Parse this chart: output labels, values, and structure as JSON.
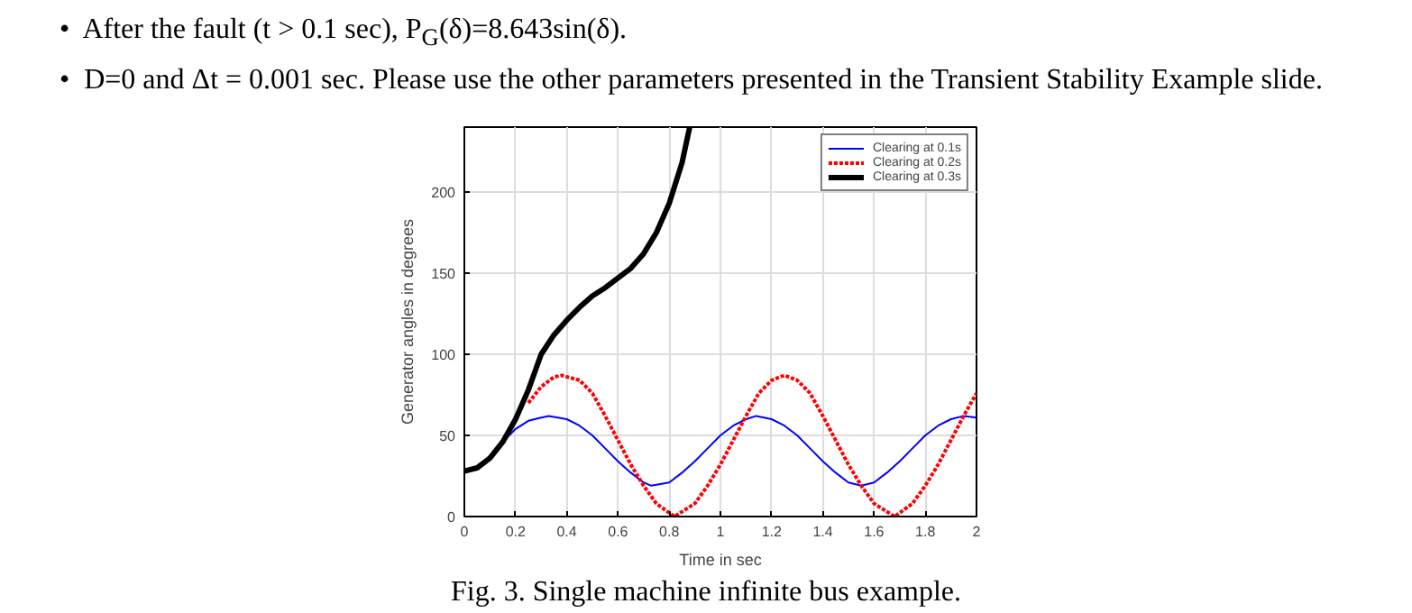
{
  "chart_data": {
    "type": "line",
    "xlabel": "Time in sec",
    "ylabel": "Generator angles in degrees",
    "annotations": [
      "•  After the fault (t > 0.1 sec), P$_{G}$(δ)=8.643sin(δ).",
      "•  D=0 and Δt = 0.001 sec. Please use the other parameters presented in the Transient Stability Example slide.",
      "Fig. 3. Single machine infinite bus example."
    ],
    "xlim": [
      0,
      2
    ],
    "ylim": [
      0,
      240
    ],
    "xticks": [
      0,
      0.2,
      0.4,
      0.6,
      0.8,
      1,
      1.2,
      1.4,
      1.6,
      1.8,
      2
    ],
    "yticks": [
      0,
      50,
      100,
      150,
      200
    ],
    "grid": true,
    "legend": "top right",
    "series": [
      {
        "name": "Clearing at 0.1s",
        "color": "#0000ff",
        "line_style": "solid",
        "x": [
          0.15,
          0.2,
          0.25,
          0.3,
          0.33,
          0.4,
          0.45,
          0.5,
          0.55,
          0.6,
          0.65,
          0.7,
          0.73,
          0.8,
          0.85,
          0.9,
          0.95,
          1.0,
          1.05,
          1.1,
          1.14,
          1.2,
          1.25,
          1.3,
          1.35,
          1.4,
          1.45,
          1.5,
          1.55,
          1.6,
          1.65,
          1.7,
          1.75,
          1.8,
          1.85,
          1.9,
          1.95,
          2.0
        ],
        "values": [
          46,
          54,
          59,
          61,
          62,
          60,
          56,
          50,
          42,
          34,
          27,
          21,
          19,
          21,
          27,
          34,
          42,
          50,
          56,
          60,
          62,
          60,
          56,
          50,
          42,
          34,
          27,
          21,
          19,
          21,
          27,
          34,
          42,
          50,
          56,
          60,
          62,
          61
        ]
      },
      {
        "name": "Clearing at 0.2s",
        "color": "#ff0000",
        "line_style": "dotted",
        "x": [
          0.25,
          0.3,
          0.35,
          0.38,
          0.45,
          0.5,
          0.55,
          0.6,
          0.65,
          0.7,
          0.75,
          0.82,
          0.9,
          0.95,
          1.0,
          1.05,
          1.1,
          1.15,
          1.2,
          1.25,
          1.3,
          1.35,
          1.4,
          1.45,
          1.5,
          1.55,
          1.6,
          1.68,
          1.75,
          1.8,
          1.85,
          1.9,
          1.95,
          2.0
        ],
        "values": [
          70,
          80,
          86,
          87,
          84,
          76,
          62,
          47,
          32,
          19,
          8,
          0,
          8,
          19,
          32,
          47,
          62,
          76,
          84,
          87,
          84,
          76,
          62,
          47,
          32,
          19,
          8,
          0,
          8,
          19,
          32,
          47,
          62,
          76
        ]
      },
      {
        "name": "Clearing at 0.3s",
        "color": "#000000",
        "line_style": "solid",
        "x": [
          0,
          0.05,
          0.1,
          0.15,
          0.2,
          0.25,
          0.3,
          0.35,
          0.4,
          0.45,
          0.5,
          0.55,
          0.6,
          0.65,
          0.7,
          0.75,
          0.8,
          0.85,
          0.88
        ],
        "values": [
          28,
          30,
          36,
          46,
          60,
          78,
          100,
          112,
          121,
          129,
          136,
          141,
          147,
          153,
          162,
          175,
          193,
          218,
          240
        ]
      }
    ]
  }
}
